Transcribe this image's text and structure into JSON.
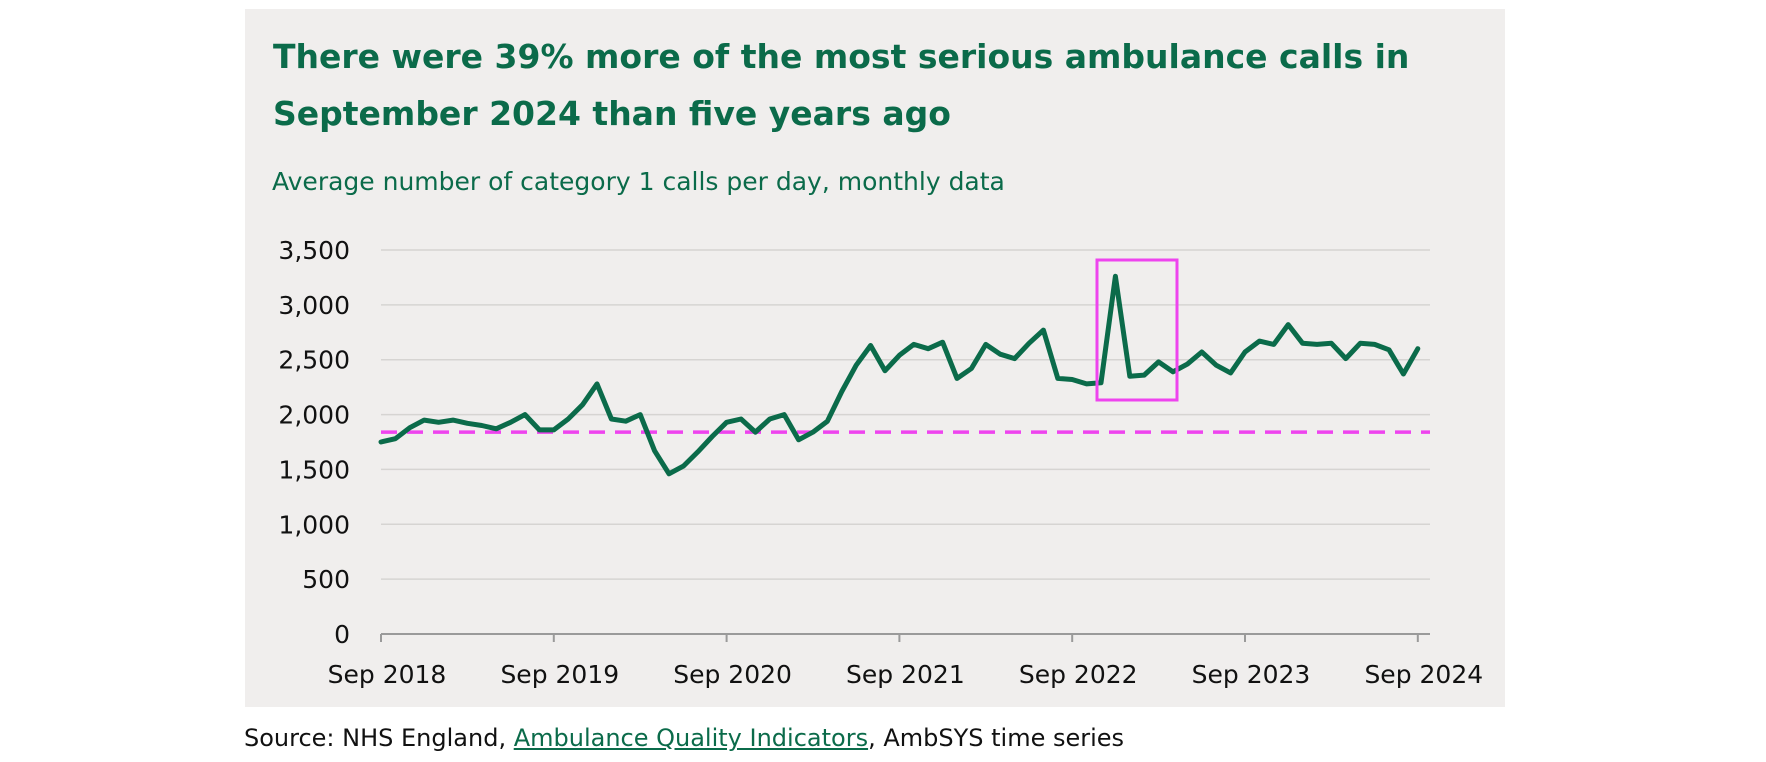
{
  "chart_data": {
    "type": "line",
    "title": "There were 39% more of the most serious ambulance calls in September 2024 than five years ago",
    "subtitle": "Average number of category 1 calls per day, monthly data",
    "xlabel": "",
    "ylabel": "",
    "x_tick_labels": [
      "Sep 2018",
      "Sep 2019",
      "Sep 2020",
      "Sep 2021",
      "Sep 2022",
      "Sep 2023",
      "Sep 2024"
    ],
    "y_tick_labels": [
      "0",
      "500",
      "1,000",
      "1,500",
      "2,000",
      "2,500",
      "3,000",
      "3,500"
    ],
    "ylim": [
      0,
      3500
    ],
    "grid": true,
    "x_start": "Sep 2018",
    "x_end": "Sep 2024",
    "series": [
      {
        "color": "#0b6b4a",
        "values": [
          1750,
          1780,
          1880,
          1950,
          1930,
          1950,
          1920,
          1900,
          1870,
          1930,
          2000,
          1860,
          1860,
          1960,
          2090,
          2280,
          1960,
          1940,
          2000,
          1670,
          1460,
          1530,
          1660,
          1800,
          1930,
          1960,
          1840,
          1960,
          2000,
          1770,
          1840,
          1940,
          2210,
          2450,
          2630,
          2400,
          2540,
          2640,
          2600,
          2660,
          2330,
          2420,
          2640,
          2550,
          2510,
          2650,
          2770,
          2330,
          2320,
          2280,
          2290,
          3260,
          2350,
          2360,
          2480,
          2390,
          2460,
          2570,
          2450,
          2380,
          2570,
          2670,
          2640,
          2820,
          2650,
          2640,
          2650,
          2510,
          2650,
          2640,
          2590,
          2370,
          2600
        ]
      }
    ],
    "reference_line": {
      "value": 1840,
      "color": "#ee44ee",
      "style": "dashed"
    },
    "highlight": {
      "from": "Nov 2022",
      "to": "Feb 2023",
      "color": "#ee44ee"
    }
  },
  "source": {
    "prefix": "Source: NHS England, ",
    "link_text": "Ambulance Quality Indicators",
    "suffix": ", AmbSYS time series"
  }
}
